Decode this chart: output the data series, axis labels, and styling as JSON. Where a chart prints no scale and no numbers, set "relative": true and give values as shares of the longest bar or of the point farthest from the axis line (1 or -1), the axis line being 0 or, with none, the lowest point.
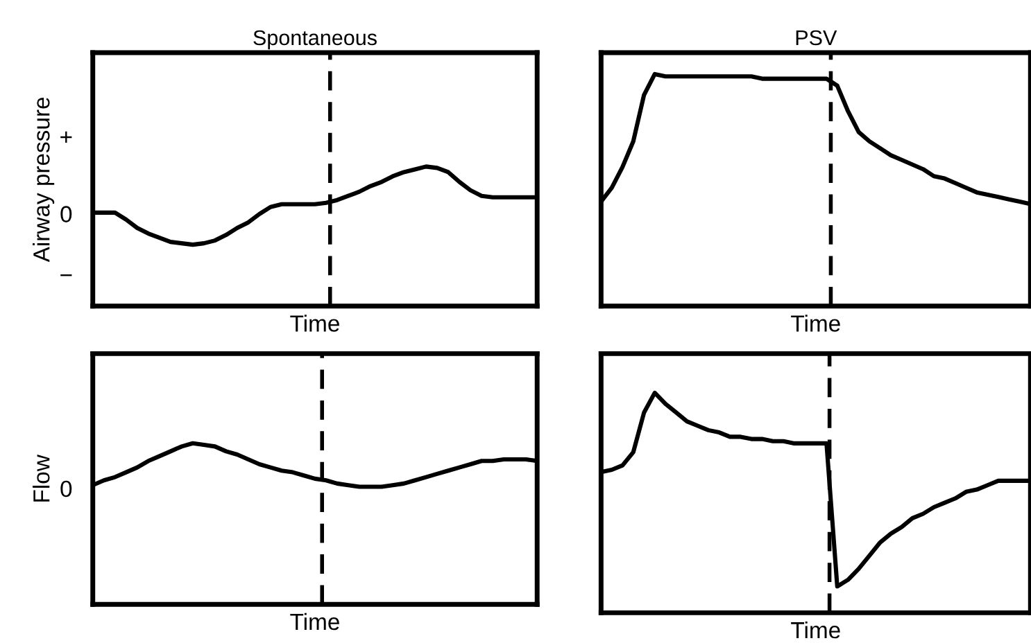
{
  "chart_data": [
    {
      "type": "line",
      "title": "Spontaneous",
      "xlabel": "Time",
      "ylabel": "Airway pressure",
      "relative": true,
      "annotations": [
        "+",
        "0",
        "−"
      ],
      "grid": false,
      "legend": false,
      "marker": "none",
      "line_style": "solid",
      "categories": [
        null,
        null,
        null,
        null,
        null,
        null,
        null,
        null,
        null,
        null,
        null,
        null,
        null,
        null,
        null,
        null,
        null,
        null,
        null,
        null,
        null,
        null,
        null,
        null,
        null,
        null,
        null,
        null,
        null,
        null,
        null,
        null,
        null,
        null,
        null,
        null,
        null,
        null,
        null,
        null,
        null
      ],
      "series": [
        {
          "color": "#000000",
          "values": [
            0.67,
            0.67,
            0.67,
            0.62,
            0.56,
            0.52,
            0.49,
            0.46,
            0.45,
            0.44,
            0.45,
            0.47,
            0.51,
            0.56,
            0.6,
            0.66,
            0.71,
            0.73,
            0.73,
            0.73,
            0.73,
            0.74,
            0.76,
            0.79,
            0.82,
            0.86,
            0.89,
            0.93,
            0.96,
            0.98,
            1.0,
            0.99,
            0.96,
            0.89,
            0.83,
            0.79,
            0.78,
            0.78,
            0.78,
            0.78,
            0.78
          ]
        }
      ]
    },
    {
      "type": "line",
      "title": "PSV",
      "xlabel": "Time",
      "relative": true,
      "grid": false,
      "legend": false,
      "marker": "none",
      "line_style": "solid",
      "categories": [
        null,
        null,
        null,
        null,
        null,
        null,
        null,
        null,
        null,
        null,
        null,
        null,
        null,
        null,
        null,
        null,
        null,
        null,
        null,
        null,
        null,
        null,
        null,
        null,
        null,
        null,
        null,
        null,
        null,
        null,
        null,
        null,
        null,
        null,
        null,
        null,
        null,
        null,
        null,
        null,
        null
      ],
      "series": [
        {
          "color": "#000000",
          "values": [
            0.45,
            0.51,
            0.6,
            0.71,
            0.91,
            1.0,
            0.99,
            0.99,
            0.99,
            0.99,
            0.99,
            0.99,
            0.99,
            0.99,
            0.99,
            0.98,
            0.98,
            0.98,
            0.98,
            0.98,
            0.98,
            0.98,
            0.95,
            0.84,
            0.75,
            0.71,
            0.68,
            0.65,
            0.63,
            0.61,
            0.59,
            0.56,
            0.55,
            0.53,
            0.51,
            0.49,
            0.48,
            0.47,
            0.46,
            0.45,
            0.44
          ]
        }
      ]
    },
    {
      "type": "line",
      "xlabel": "Time",
      "ylabel": "Flow",
      "relative": true,
      "annotations": [
        "0"
      ],
      "grid": false,
      "legend": false,
      "marker": "none",
      "line_style": "solid",
      "categories": [
        null,
        null,
        null,
        null,
        null,
        null,
        null,
        null,
        null,
        null,
        null,
        null,
        null,
        null,
        null,
        null,
        null,
        null,
        null,
        null,
        null,
        null,
        null,
        null,
        null,
        null,
        null,
        null,
        null,
        null,
        null,
        null,
        null,
        null,
        null,
        null,
        null,
        null,
        null,
        null,
        null
      ],
      "series": [
        {
          "color": "#000000",
          "values": [
            0.74,
            0.77,
            0.79,
            0.82,
            0.85,
            0.89,
            0.92,
            0.95,
            0.98,
            1.0,
            0.99,
            0.98,
            0.95,
            0.93,
            0.9,
            0.87,
            0.85,
            0.83,
            0.82,
            0.8,
            0.78,
            0.77,
            0.75,
            0.74,
            0.73,
            0.73,
            0.73,
            0.74,
            0.75,
            0.77,
            0.79,
            0.81,
            0.83,
            0.85,
            0.87,
            0.89,
            0.89,
            0.9,
            0.9,
            0.9,
            0.89
          ]
        }
      ]
    },
    {
      "type": "line",
      "xlabel": "Time",
      "relative": true,
      "grid": false,
      "legend": false,
      "marker": "none",
      "line_style": "solid",
      "categories": [
        null,
        null,
        null,
        null,
        null,
        null,
        null,
        null,
        null,
        null,
        null,
        null,
        null,
        null,
        null,
        null,
        null,
        null,
        null,
        null,
        null,
        null,
        null,
        null,
        null,
        null,
        null,
        null,
        null,
        null,
        null,
        null,
        null,
        null,
        null,
        null,
        null,
        null,
        null,
        null,
        null
      ],
      "series": [
        {
          "color": "#000000",
          "values": [
            0.64,
            0.65,
            0.67,
            0.73,
            0.91,
            1.0,
            0.95,
            0.91,
            0.87,
            0.85,
            0.83,
            0.82,
            0.8,
            0.8,
            0.79,
            0.79,
            0.78,
            0.78,
            0.77,
            0.77,
            0.77,
            0.77,
            0.12,
            0.15,
            0.2,
            0.26,
            0.32,
            0.36,
            0.39,
            0.43,
            0.45,
            0.48,
            0.5,
            0.52,
            0.55,
            0.56,
            0.58,
            0.6,
            0.6,
            0.6,
            0.6
          ]
        }
      ]
    }
  ]
}
